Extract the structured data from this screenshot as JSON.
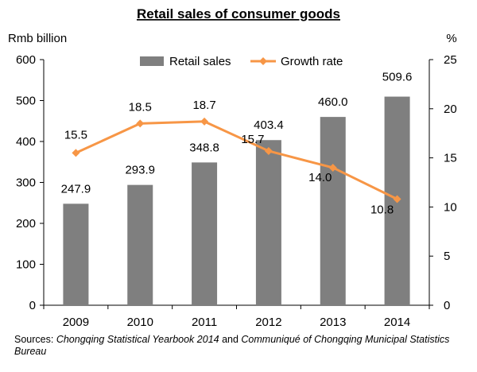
{
  "chart_data": {
    "type": "bar+line",
    "title": "Retail sales of consumer goods",
    "categories": [
      "2009",
      "2010",
      "2011",
      "2012",
      "2013",
      "2014"
    ],
    "series": [
      {
        "name": "Retail sales",
        "type": "bar",
        "axis": "left",
        "values": [
          247.9,
          293.9,
          348.8,
          403.4,
          460.0,
          509.6
        ],
        "labels": [
          "247.9",
          "293.9",
          "348.8",
          "403.4",
          "460.0",
          "509.6"
        ],
        "color": "#7f7f7f"
      },
      {
        "name": "Growth rate",
        "type": "line",
        "axis": "right",
        "values": [
          15.5,
          18.5,
          18.7,
          15.7,
          14.0,
          10.8
        ],
        "labels": [
          "15.5",
          "18.5",
          "18.7",
          "15.7",
          "14.0",
          "10.8"
        ],
        "color": "#f79646"
      }
    ],
    "y_left": {
      "label": "Rmb billion",
      "min": 0,
      "max": 600,
      "step": 100,
      "ticks": [
        "0",
        "100",
        "200",
        "300",
        "400",
        "500",
        "600"
      ]
    },
    "y_right": {
      "label": "%",
      "min": 0,
      "max": 25,
      "step": 5,
      "ticks": [
        "0",
        "5",
        "10",
        "15",
        "20",
        "25"
      ]
    },
    "grid": false,
    "legend": "top-center"
  },
  "sources": {
    "prefix": "Sources: ",
    "part1": "Chongqing Statistical Yearbook 2014",
    "middle": "  and ",
    "part2": "Communiqué of Chongqing Municipal Statistics Bureau"
  }
}
